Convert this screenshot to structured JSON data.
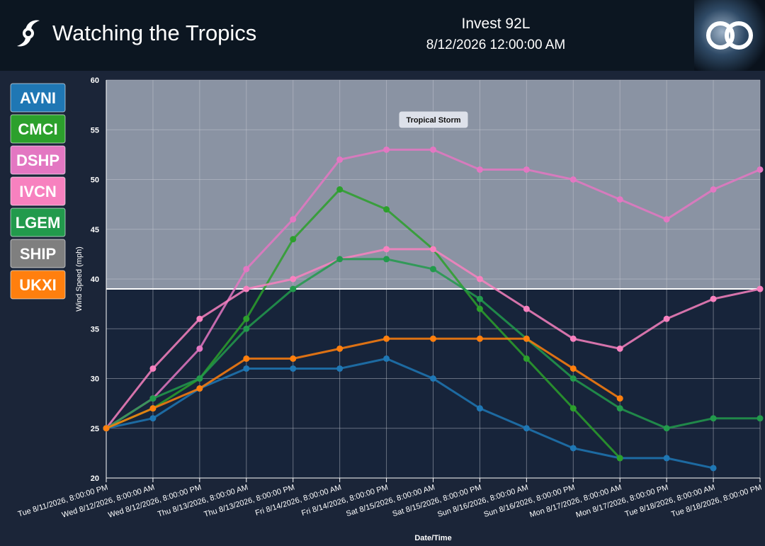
{
  "header": {
    "title": "Watching the Tropics",
    "storm": "Invest 92L",
    "time": "8/12/2026 12:00:00 AM"
  },
  "chart_data": {
    "type": "line",
    "xlabel": "Date/Time",
    "ylabel": "Wind Speed (mph)",
    "categories": [
      "Tue 8/11/2026, 8:00:00 PM",
      "Wed 8/12/2026, 8:00:00 AM",
      "Wed 8/12/2026, 8:00:00 PM",
      "Thu 8/13/2026, 8:00:00 AM",
      "Thu 8/13/2026, 8:00:00 PM",
      "Fri 8/14/2026, 8:00:00 AM",
      "Fri 8/14/2026, 8:00:00 PM",
      "Sat 8/15/2026, 8:00:00 AM",
      "Sat 8/15/2026, 8:00:00 PM",
      "Sun 8/16/2026, 8:00:00 AM",
      "Sun 8/16/2026, 8:00:00 PM",
      "Mon 8/17/2026, 8:00:00 AM",
      "Mon 8/17/2026, 8:00:00 PM",
      "Tue 8/18/2026, 8:00:00 AM",
      "Tue 8/18/2026, 8:00:00 PM"
    ],
    "ylim": [
      20,
      60
    ],
    "yticks": [
      20,
      25,
      30,
      35,
      40,
      45,
      50,
      55,
      60
    ],
    "grid": true,
    "threshold": {
      "value": 39,
      "label": "Tropical Storm"
    },
    "series": [
      {
        "name": "AVNI",
        "color": "#1f77b4",
        "values": [
          25,
          26,
          29,
          31,
          31,
          31,
          32,
          30,
          27,
          25,
          23,
          22,
          22,
          21,
          null
        ]
      },
      {
        "name": "CMCI",
        "color": "#2ca02c",
        "values": [
          25,
          27,
          30,
          36,
          44,
          49,
          47,
          43,
          37,
          32,
          27,
          22,
          null,
          null,
          null
        ]
      },
      {
        "name": "DSHP",
        "color": "#e377c2",
        "values": [
          25,
          28,
          33,
          41,
          46,
          52,
          53,
          53,
          51,
          51,
          50,
          48,
          46,
          49,
          51
        ]
      },
      {
        "name": "IVCN",
        "color": "#f781bf",
        "values": [
          25,
          31,
          36,
          39,
          40,
          42,
          43,
          43,
          40,
          37,
          34,
          33,
          36,
          38,
          39
        ]
      },
      {
        "name": "LGEM",
        "color": "#229a4c",
        "values": [
          25,
          28,
          30,
          35,
          39,
          42,
          42,
          41,
          38,
          34,
          30,
          27,
          25,
          26,
          26
        ]
      },
      {
        "name": "SHIP",
        "color": "#7f7f7f",
        "values": [
          null,
          null,
          null,
          null,
          null,
          null,
          null,
          null,
          null,
          null,
          null,
          null,
          null,
          null,
          null
        ]
      },
      {
        "name": "UKXI",
        "color": "#ff7f0e",
        "values": [
          25,
          27,
          29,
          32,
          32,
          33,
          34,
          34,
          34,
          34,
          31,
          28,
          null,
          null,
          null
        ]
      }
    ]
  }
}
